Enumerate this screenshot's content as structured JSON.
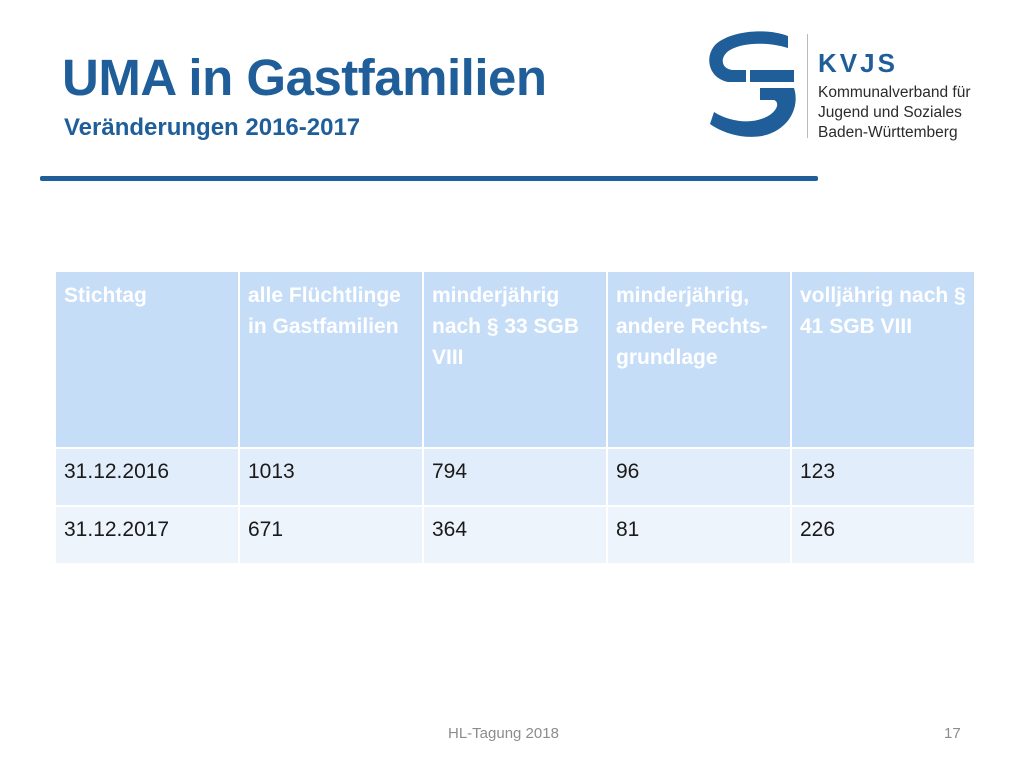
{
  "slide": {
    "title": "UMA in Gastfamilien",
    "subtitle": "Veränderungen 2016-2017"
  },
  "logo": {
    "icon": "kvjs-logo-mark",
    "acronym": "KVJS",
    "line1": "Kommunalverband für",
    "line2": "Jugend und Soziales",
    "line3": "Baden-Württemberg",
    "color": "#1f5e99"
  },
  "table": {
    "headers": [
      "Stichtag",
      "alle Flüchtlinge in Gastfamilien",
      "minderjährig nach § 33 SGB VIII",
      "minderjährig, andere Rechts-grundlage",
      "volljährig nach § 41 SGB VIII"
    ],
    "rows": [
      [
        "31.12.2016",
        "1013",
        "794",
        "96",
        "123"
      ],
      [
        "31.12.2017",
        "671",
        "364",
        "81",
        "226"
      ]
    ]
  },
  "footer": {
    "center": "HL-Tagung 2018",
    "page": "17"
  },
  "colors": {
    "accent": "#1f5e99",
    "header_bg": "#c6ddf8",
    "row_bg_1": "#e2edfb",
    "row_bg_2": "#eef4fc"
  }
}
